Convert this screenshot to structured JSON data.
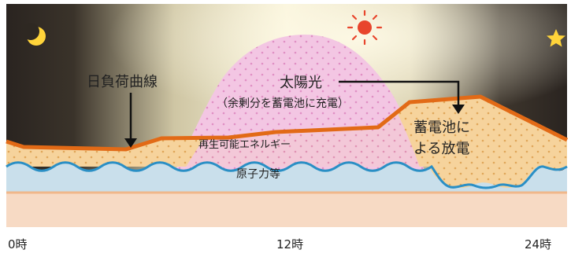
{
  "labels": {
    "daily_load_curve": "日負荷曲線",
    "solar": "太陽光",
    "solar_note": "（余剰分を蓄電池に充電）",
    "renewables": "再生可能エネルギー",
    "battery_discharge_line1": "蓄電池に",
    "battery_discharge_line2": "よる放電",
    "nuclear_etc": "原子力等"
  },
  "axis": {
    "start": "0時",
    "middle": "12時",
    "end": "24時"
  },
  "icons": {
    "night_start": "crescent-moon",
    "day": "sun",
    "night_end": "star"
  },
  "colors": {
    "night_sky": "#2b2520",
    "day_glow": "#f6f0d4",
    "solar_area": "#f2c4e2",
    "renewable_area": "#f7d4a3",
    "battery_area": "#efcf94",
    "base_band": "#c6dce9",
    "wave_line": "#2a8fc5",
    "load_curve": "#e06a18",
    "bottom_band": "#f7d9c2"
  }
}
